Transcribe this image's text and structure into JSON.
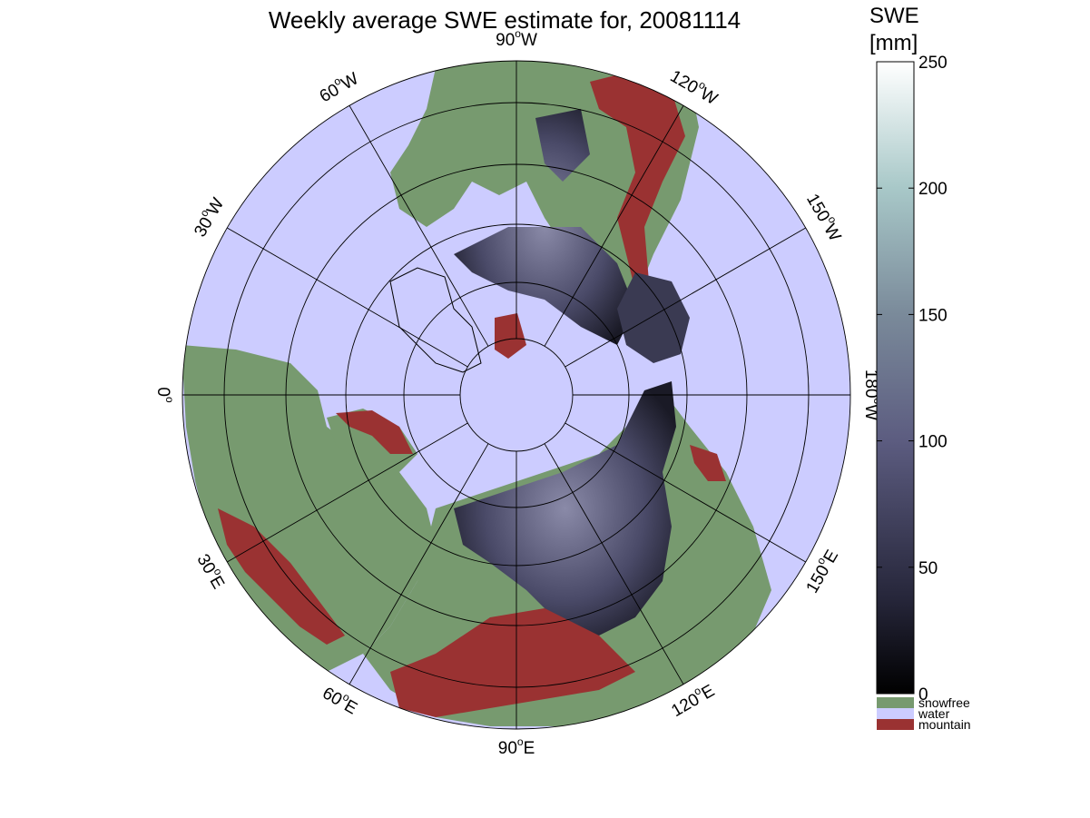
{
  "title": "Weekly average SWE estimate for, 20081114",
  "colors": {
    "water": "#ccccff",
    "snowfree": "#779a6f",
    "mountain": "#9a3232",
    "snow_low": "#0a0a10",
    "snow_mid": "#5a5a7a",
    "snow_high": "#ffffff",
    "grid": "#000000"
  },
  "map": {
    "projection": "north-polar-stereographic",
    "longitude_labels": [
      "90°W",
      "120°W",
      "150°W",
      "180°W",
      "150°E",
      "120°E",
      "90°E",
      "60°E",
      "30°E",
      "0°",
      "30°W",
      "60°W"
    ],
    "longitude_labels_parts": [
      {
        "deg": "90",
        "hem": "W"
      },
      {
        "deg": "120",
        "hem": "W"
      },
      {
        "deg": "150",
        "hem": "W"
      },
      {
        "deg": "180",
        "hem": "W"
      },
      {
        "deg": "150",
        "hem": "E"
      },
      {
        "deg": "120",
        "hem": "E"
      },
      {
        "deg": "90",
        "hem": "E"
      },
      {
        "deg": "60",
        "hem": "E"
      },
      {
        "deg": "30",
        "hem": "E"
      },
      {
        "deg": "0",
        "hem": ""
      },
      {
        "deg": "30",
        "hem": "W"
      },
      {
        "deg": "60",
        "hem": "W"
      }
    ]
  },
  "colorbar": {
    "title_line1": "SWE",
    "title_line2": "[mm]",
    "ticks": [
      "0",
      "50",
      "100",
      "150",
      "200",
      "250"
    ],
    "tick_values": [
      0,
      50,
      100,
      150,
      200,
      250
    ],
    "range": [
      0,
      250
    ]
  },
  "legend": {
    "items": [
      {
        "label": "snowfree",
        "color": "#779a6f"
      },
      {
        "label": "water",
        "color": "#ccccff"
      },
      {
        "label": "mountain",
        "color": "#9a3232"
      }
    ]
  }
}
